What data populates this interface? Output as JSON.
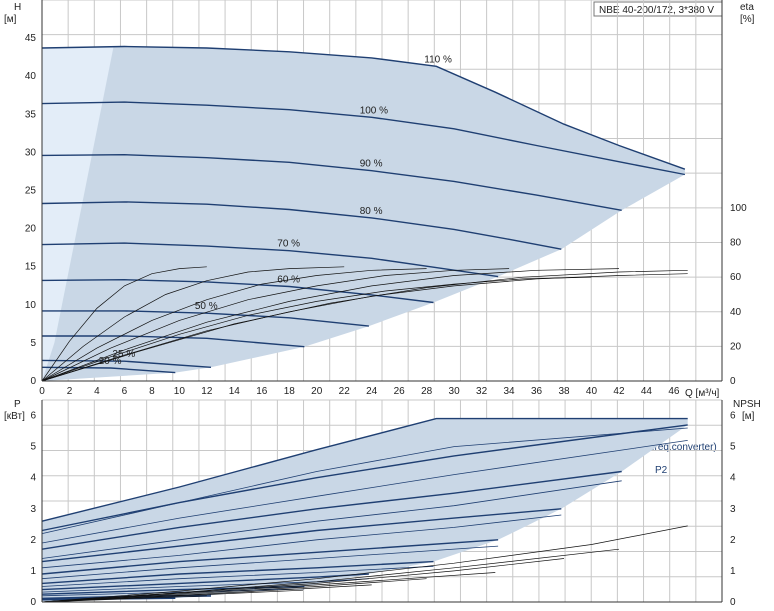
{
  "title": "NBE 40-200/172, 3*380 V",
  "colors": {
    "region": "#c9d7e6",
    "region_light": "#e3edf8",
    "curve": "#1f3f72",
    "eff": "#111111",
    "grid": "#c8c8c8"
  },
  "chart_data": [
    {
      "type": "line",
      "panel": "top",
      "left_axis": {
        "label_top": "H",
        "label_unit": "[м]",
        "ticks": [
          "0",
          "5",
          "10",
          "15",
          "20",
          "25",
          "30",
          "35",
          "40",
          "45"
        ],
        "ylim": [
          0,
          50
        ]
      },
      "right_axis": {
        "label_top": "eta",
        "label_unit": "[%]",
        "ticks": [
          "0",
          "20",
          "40",
          "60",
          "80",
          "100"
        ],
        "ylim": [
          0,
          100
        ]
      },
      "x_axis": {
        "label": "Q [м³/ч]",
        "ticks": [
          "0",
          "2",
          "4",
          "6",
          "8",
          "10",
          "12",
          "14",
          "16",
          "18",
          "20",
          "22",
          "24",
          "26",
          "28",
          "30",
          "32",
          "34",
          "36",
          "38",
          "40",
          "42",
          "44",
          "46"
        ],
        "xlim": [
          0,
          49.5
        ]
      },
      "series": [
        {
          "name": "110 %",
          "x": [
            0,
            6,
            12,
            18,
            24,
            28.7,
            33,
            38,
            42,
            46.8
          ],
          "y": [
            43.7,
            43.9,
            43.7,
            43.2,
            42.4,
            41.3,
            37.9,
            33.7,
            30.9,
            27.8
          ]
        },
        {
          "name": "100 %",
          "x": [
            0,
            6,
            12,
            18,
            24,
            30,
            36,
            42.5,
            46.8
          ],
          "y": [
            36.4,
            36.6,
            36.2,
            35.6,
            34.6,
            33.1,
            30.9,
            28.6,
            27.1
          ]
        },
        {
          "name": "90 %",
          "x": [
            0,
            6,
            12,
            18,
            24,
            30,
            36,
            42.2
          ],
          "y": [
            29.6,
            29.7,
            29.3,
            28.7,
            27.6,
            26.2,
            24.4,
            22.4
          ]
        },
        {
          "name": "80 %",
          "x": [
            0,
            6,
            12,
            18,
            24,
            30,
            34,
            37.8
          ],
          "y": [
            23.3,
            23.5,
            23.2,
            22.5,
            21.4,
            19.9,
            18.6,
            17.3
          ]
        },
        {
          "name": "70 %",
          "x": [
            0,
            6,
            12,
            18,
            24,
            29,
            33.2
          ],
          "y": [
            17.9,
            18.1,
            17.7,
            17.1,
            16.1,
            14.8,
            13.7
          ]
        },
        {
          "name": "60 %",
          "x": [
            0,
            6,
            12,
            18,
            24,
            28.5
          ],
          "y": [
            13.2,
            13.3,
            13.0,
            12.4,
            11.3,
            10.3
          ]
        },
        {
          "name": "50 %",
          "x": [
            0,
            6,
            12,
            18,
            23.8
          ],
          "y": [
            9.2,
            9.2,
            8.9,
            8.3,
            7.2
          ]
        },
        {
          "name": "",
          "x": [
            0,
            6,
            12,
            19.1
          ],
          "y": [
            5.9,
            5.9,
            5.6,
            4.5
          ]
        },
        {
          "name": "25 %",
          "x": [
            0,
            6,
            12.3
          ],
          "y": [
            2.7,
            2.6,
            1.8
          ]
        },
        {
          "name": "20 %",
          "x": [
            0,
            5,
            9.7
          ],
          "y": [
            1.8,
            1.7,
            1.1
          ]
        }
      ],
      "efficiency_curves": [
        {
          "x": [
            0,
            2,
            4,
            6,
            8,
            10,
            12
          ],
          "y": [
            0,
            23,
            42,
            55,
            62,
            65,
            66
          ]
        },
        {
          "x": [
            0,
            3,
            6,
            9,
            12,
            15,
            18,
            22
          ],
          "y": [
            0,
            20,
            37,
            50,
            58,
            63,
            65,
            66
          ]
        },
        {
          "x": [
            0,
            4,
            8,
            12,
            16,
            20,
            24,
            28
          ],
          "y": [
            0,
            19,
            35,
            47,
            56,
            61,
            64,
            65
          ]
        },
        {
          "x": [
            0,
            5,
            10,
            15,
            20,
            25,
            30,
            34
          ],
          "y": [
            0,
            19,
            35,
            47,
            55,
            61,
            64,
            65
          ]
        },
        {
          "x": [
            0,
            6,
            12,
            18,
            24,
            30,
            36,
            42
          ],
          "y": [
            0,
            18,
            34,
            46,
            55,
            61,
            64,
            65
          ]
        },
        {
          "x": [
            0,
            7,
            14,
            21,
            28,
            35,
            42,
            47
          ],
          "y": [
            0,
            17,
            33,
            45,
            54,
            60,
            63,
            64
          ]
        },
        {
          "x": [
            0,
            6,
            12,
            18,
            24,
            30,
            36,
            42,
            47
          ],
          "y": [
            0,
            15,
            29,
            40,
            49,
            55,
            59,
            61,
            62
          ]
        },
        {
          "x": [
            0,
            5,
            10,
            15,
            20,
            25,
            30,
            35,
            40
          ],
          "y": [
            0,
            14,
            27,
            38,
            46,
            52,
            56,
            59,
            60
          ]
        }
      ]
    },
    {
      "type": "line",
      "panel": "bottom",
      "left_axis": {
        "label_top": "P",
        "label_unit": "[кВт]",
        "ticks": [
          "0",
          "1",
          "2",
          "3",
          "4",
          "5",
          "6"
        ],
        "ylim": [
          0,
          6.5
        ]
      },
      "right_axis": {
        "label_top": "NPSH",
        "label_unit": "[м]",
        "ticks": [
          "0",
          "1",
          "2",
          "3",
          "4",
          "5",
          "6"
        ],
        "ylim": [
          0,
          6.5
        ]
      },
      "annotations": [
        "P1 (motor+freq.converter)",
        "P2"
      ],
      "p1_series": [
        {
          "x": [
            0,
            10,
            20,
            28.7,
            47
          ],
          "y": [
            2.6,
            3.7,
            4.9,
            5.9,
            5.9
          ]
        },
        {
          "x": [
            0,
            10,
            20,
            30,
            47
          ],
          "y": [
            2.3,
            3.2,
            4.0,
            4.7,
            5.7
          ]
        },
        {
          "x": [
            0,
            10,
            20,
            30,
            42.2
          ],
          "y": [
            1.7,
            2.4,
            3.0,
            3.5,
            4.2
          ]
        },
        {
          "x": [
            0,
            10,
            20,
            30,
            37.8
          ],
          "y": [
            1.3,
            1.8,
            2.3,
            2.7,
            3.0
          ]
        },
        {
          "x": [
            0,
            10,
            20,
            33.2
          ],
          "y": [
            0.9,
            1.3,
            1.6,
            2.0
          ]
        },
        {
          "x": [
            0,
            10,
            20,
            28.5
          ],
          "y": [
            0.6,
            0.9,
            1.1,
            1.3
          ]
        },
        {
          "x": [
            0,
            10,
            20,
            23.8
          ],
          "y": [
            0.4,
            0.6,
            0.8,
            0.9
          ]
        },
        {
          "x": [
            0,
            10,
            19.1
          ],
          "y": [
            0.25,
            0.4,
            0.5
          ]
        },
        {
          "x": [
            0,
            6,
            12.3
          ],
          "y": [
            0.12,
            0.18,
            0.22
          ]
        },
        {
          "x": [
            0,
            5,
            9.7
          ],
          "y": [
            0.08,
            0.11,
            0.13
          ]
        }
      ],
      "p2_series": [
        {
          "x": [
            0,
            10,
            20,
            30,
            47
          ],
          "y": [
            2.2,
            3.2,
            4.2,
            5.0,
            5.6
          ]
        },
        {
          "x": [
            0,
            10,
            20,
            30,
            47
          ],
          "y": [
            1.9,
            2.7,
            3.4,
            4.1,
            5.2
          ]
        },
        {
          "x": [
            0,
            10,
            20,
            30,
            42.2
          ],
          "y": [
            1.4,
            2.0,
            2.6,
            3.1,
            3.9
          ]
        },
        {
          "x": [
            0,
            10,
            20,
            30,
            37.8
          ],
          "y": [
            1.1,
            1.5,
            2.0,
            2.4,
            2.8
          ]
        },
        {
          "x": [
            0,
            10,
            20,
            33.2
          ],
          "y": [
            0.75,
            1.1,
            1.4,
            1.8
          ]
        },
        {
          "x": [
            0,
            10,
            20,
            28.5
          ],
          "y": [
            0.5,
            0.75,
            0.95,
            1.15
          ]
        },
        {
          "x": [
            0,
            10,
            20,
            23.8
          ],
          "y": [
            0.32,
            0.5,
            0.65,
            0.75
          ]
        },
        {
          "x": [
            0,
            10,
            19.1
          ],
          "y": [
            0.2,
            0.32,
            0.42
          ]
        },
        {
          "x": [
            0,
            6,
            12.3
          ],
          "y": [
            0.1,
            0.14,
            0.18
          ]
        },
        {
          "x": [
            0,
            5,
            9.7
          ],
          "y": [
            0.06,
            0.09,
            0.11
          ]
        }
      ],
      "npsh_series": [
        {
          "x": [
            0,
            10,
            20,
            30,
            40,
            47
          ],
          "y": [
            0.0,
            0.35,
            0.75,
            1.25,
            1.85,
            2.45
          ]
        },
        {
          "x": [
            0,
            10,
            20,
            30,
            42
          ],
          "y": [
            0.0,
            0.3,
            0.65,
            1.1,
            1.7
          ]
        },
        {
          "x": [
            0,
            10,
            20,
            30,
            38
          ],
          "y": [
            0.0,
            0.3,
            0.6,
            1.0,
            1.4
          ]
        },
        {
          "x": [
            0,
            10,
            20,
            33
          ],
          "y": [
            0.0,
            0.28,
            0.55,
            0.95
          ]
        },
        {
          "x": [
            0,
            10,
            20,
            28
          ],
          "y": [
            0.0,
            0.25,
            0.5,
            0.75
          ]
        },
        {
          "x": [
            0,
            10,
            20,
            24
          ],
          "y": [
            0.0,
            0.22,
            0.45,
            0.55
          ]
        },
        {
          "x": [
            0,
            10,
            19
          ],
          "y": [
            0.0,
            0.2,
            0.38
          ]
        },
        {
          "x": [
            0,
            6,
            12
          ],
          "y": [
            0.0,
            0.1,
            0.2
          ]
        }
      ]
    }
  ]
}
